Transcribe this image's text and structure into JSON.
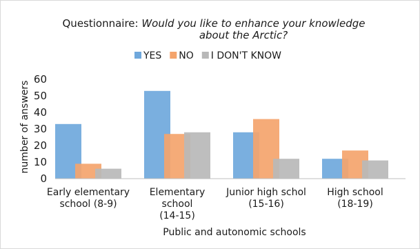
{
  "chart_data": {
    "type": "bar",
    "title_prefix": "Questionnaire: ",
    "title_line1_italic": "Would you like to enhance your knowledge",
    "title_line2_italic": "about the Arctic?",
    "xlabel": "Public and autonomic schools",
    "ylabel": "number of answers",
    "ylim": [
      0,
      60
    ],
    "yticks": [
      0,
      10,
      20,
      30,
      40,
      50,
      60
    ],
    "grid": false,
    "legend_position": "top",
    "categories": [
      [
        "Early elementary",
        "school   (8-9)"
      ],
      [
        "Elementary",
        "school",
        "(14-15)"
      ],
      [
        "Junior high schol",
        "(15-16)"
      ],
      [
        "High school",
        "(18-19)"
      ]
    ],
    "series": [
      {
        "name": "YES",
        "color": "#6fa8dc",
        "values": [
          33,
          53,
          28,
          12
        ]
      },
      {
        "name": "NO",
        "color": "#f4a46c",
        "values": [
          9,
          27,
          36,
          17
        ]
      },
      {
        "name": "I DON'T KNOW",
        "color": "#b8b8b8",
        "values": [
          6,
          28,
          12,
          11
        ]
      }
    ]
  }
}
